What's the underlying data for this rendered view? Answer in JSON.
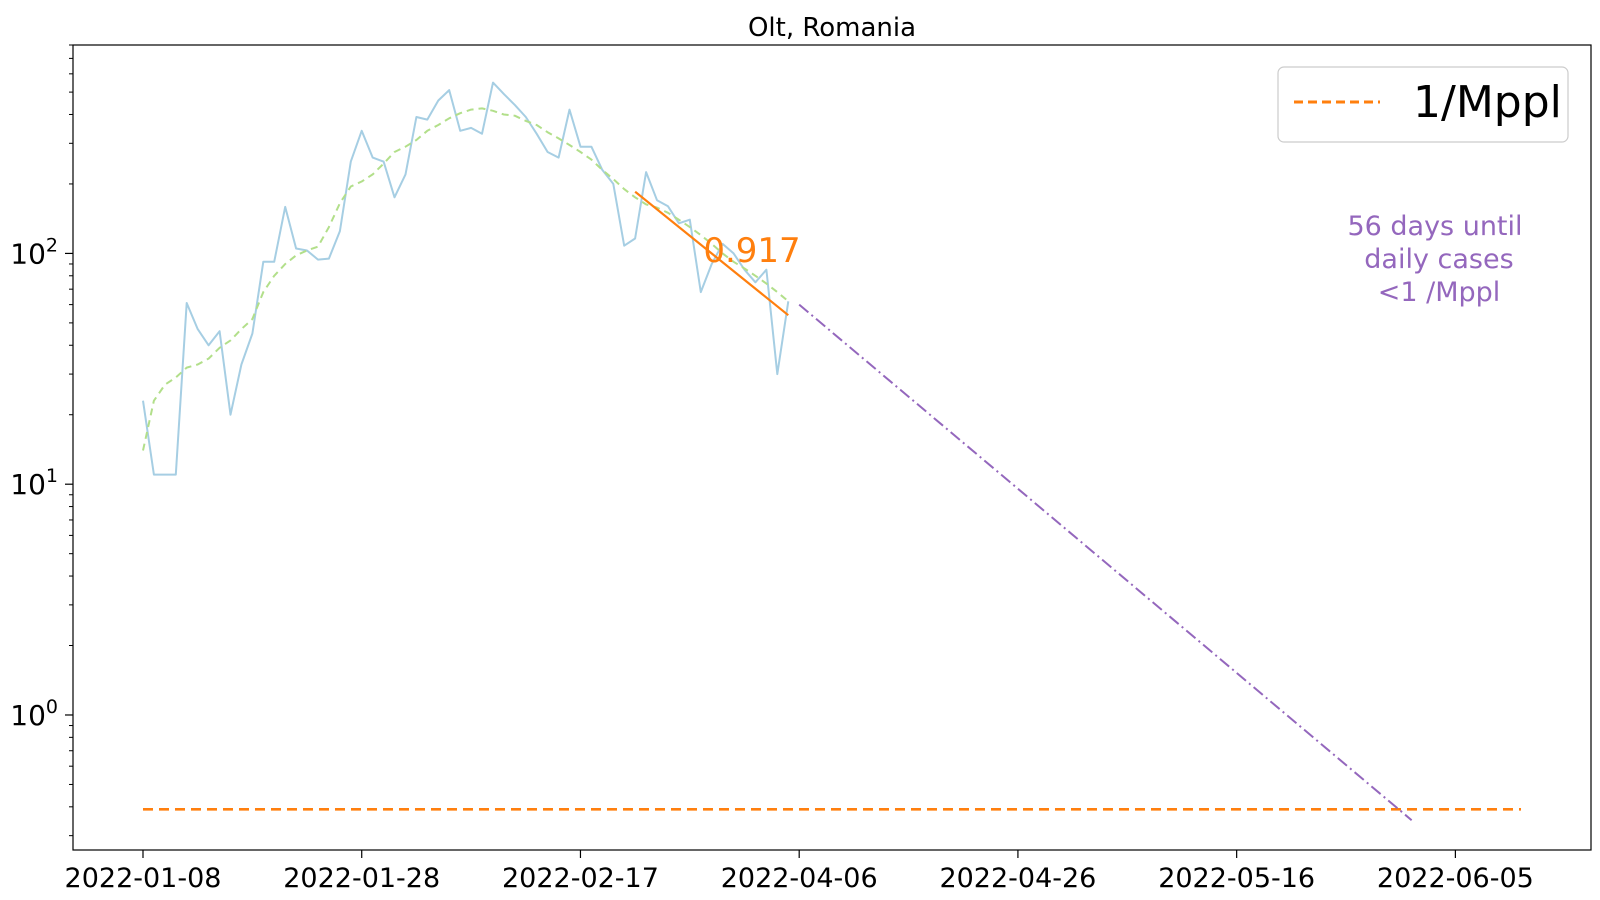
{
  "chart_data": {
    "type": "line",
    "title": "Olt, Romania",
    "xlabel": "",
    "ylabel": "",
    "y_scale": "log",
    "grid": false,
    "legend": {
      "placement": "top-right",
      "entries": [
        {
          "label": "1/Mppl",
          "color": "#ff7f0e",
          "style": "dashed"
        }
      ]
    },
    "x_tick_labels": [
      "2022-01-08",
      "2022-01-28",
      "2022-02-17",
      "2022-04-06",
      "2022-04-26",
      "2022-05-16",
      "2022-06-05"
    ],
    "y_ticks": [
      {
        "value": 1,
        "base": "10",
        "exp": "0"
      },
      {
        "value": 10,
        "base": "10",
        "exp": "1"
      },
      {
        "value": 100,
        "base": "10",
        "exp": "2"
      }
    ],
    "ylim": [
      0.26,
      800
    ],
    "x_range": [
      -6.4,
      132.4
    ],
    "x_tick_positions": [
      0,
      20,
      40,
      60,
      80,
      100,
      120
    ],
    "series": [
      {
        "color": "#a6cee3",
        "style": "solid",
        "x": [
          0,
          1,
          2,
          3,
          4,
          5,
          6,
          7,
          8,
          9,
          10,
          11,
          12,
          13,
          14,
          15,
          16,
          17,
          18,
          19,
          20,
          21,
          22,
          23,
          24,
          25,
          26,
          27,
          28,
          29,
          30,
          31,
          32,
          33,
          34,
          35,
          36,
          37,
          38,
          39,
          40,
          41,
          42,
          43,
          44,
          45,
          46,
          47,
          48,
          49,
          50,
          51,
          52,
          53,
          54,
          55,
          56,
          57,
          58,
          59
        ],
        "y": [
          23,
          11,
          11,
          11,
          61,
          47,
          40,
          46,
          20,
          33,
          45,
          92,
          92,
          159,
          105,
          103,
          94,
          95,
          125,
          250,
          340,
          260,
          250,
          175,
          220,
          390,
          380,
          460,
          510,
          340,
          350,
          330,
          550,
          490,
          440,
          390,
          330,
          275,
          260,
          420,
          290,
          290,
          230,
          200,
          108,
          116,
          225,
          170,
          160,
          135,
          140,
          68,
          90,
          110,
          100,
          85,
          75,
          85,
          30,
          62
        ]
      },
      {
        "color": "#b2df8a",
        "style": "dashed",
        "x": [
          0,
          1,
          2,
          3,
          4,
          5,
          6,
          7,
          8,
          9,
          10,
          11,
          12,
          13,
          14,
          15,
          16,
          17,
          18,
          19,
          20,
          21,
          22,
          23,
          24,
          25,
          26,
          27,
          28,
          29,
          30,
          31,
          32,
          33,
          34,
          35,
          36,
          37,
          38,
          39,
          40,
          41,
          42,
          43,
          44,
          45,
          46,
          47,
          48,
          49,
          50,
          51,
          52,
          53,
          54,
          55,
          56,
          57,
          58,
          59
        ],
        "y": [
          14,
          23,
          27,
          29,
          32,
          33,
          35,
          39,
          42,
          47,
          52,
          68,
          80,
          90,
          98,
          103,
          107,
          130,
          165,
          195,
          205,
          220,
          245,
          275,
          290,
          310,
          340,
          360,
          385,
          405,
          420,
          425,
          415,
          400,
          395,
          375,
          360,
          335,
          315,
          295,
          275,
          255,
          230,
          210,
          190,
          175,
          163,
          158,
          150,
          140,
          130,
          120,
          110,
          100,
          92,
          86,
          80,
          74,
          68,
          62
        ]
      }
    ],
    "fit_line": {
      "label": "0.917",
      "color": "#ff7f0e",
      "x": [
        45,
        59
      ],
      "y": [
        185,
        54
      ]
    },
    "projection": {
      "color": "#9467bd",
      "style": "dashdot",
      "x": [
        60,
        116
      ],
      "y": [
        60,
        0.35
      ]
    },
    "threshold": {
      "color": "#ff7f0e",
      "style": "dashed",
      "x": [
        0,
        126
      ],
      "y": 0.39
    },
    "annotation": {
      "lines": [
        "56 days until",
        "daily cases",
        "<1 /Mppl"
      ],
      "color": "#9467bd"
    }
  }
}
